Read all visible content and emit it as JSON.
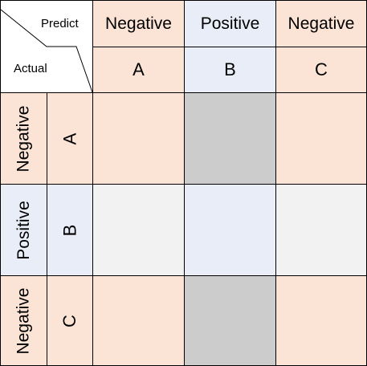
{
  "colors": {
    "peach": "#fbe3d5",
    "blue": "#e8edf7",
    "gray": "#cccccc",
    "light": "#f2f2f2",
    "border": "#000000"
  },
  "corner": {
    "predict_label": "Predict",
    "actual_label": "Actual"
  },
  "columns": [
    {
      "header": "Negative",
      "label": "A",
      "color": "peach"
    },
    {
      "header": "Positive",
      "label": "B",
      "color": "blue"
    },
    {
      "header": "Negative",
      "label": "C",
      "color": "peach"
    }
  ],
  "rows": [
    {
      "header": "Negative",
      "label": "A",
      "color": "peach"
    },
    {
      "header": "Positive",
      "label": "B",
      "color": "blue"
    },
    {
      "header": "Negative",
      "label": "C",
      "color": "peach"
    }
  ],
  "matrix_colors": [
    [
      "peach",
      "gray",
      "peach"
    ],
    [
      "light",
      "blue",
      "light"
    ],
    [
      "peach",
      "gray",
      "peach"
    ]
  ]
}
